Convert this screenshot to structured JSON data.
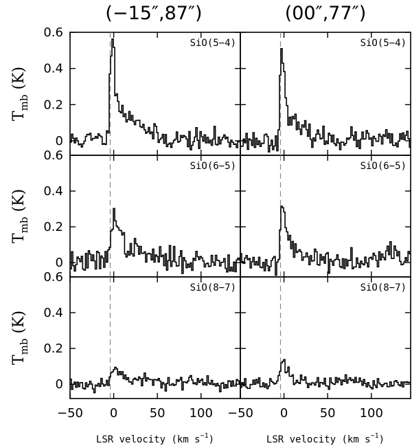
{
  "chart_data": {
    "type": "line",
    "style": "step",
    "columns": [
      {
        "title": "(−15″,87″)"
      },
      {
        "title": "(00″,77″)"
      }
    ],
    "rows": [
      {
        "line_label": "SiO(5−4)"
      },
      {
        "line_label": "SiO(6−5)"
      },
      {
        "line_label": "SiO(8−7)"
      }
    ],
    "xlabel": "LSR velocity (km s",
    "xlabel_sup": "−1",
    "xlabel_close": ")",
    "ylabel_main": "T",
    "ylabel_sub": "mb",
    "ylabel_unit": "(K)",
    "xlim": [
      -50,
      145
    ],
    "ylim": [
      -0.08,
      0.6
    ],
    "xticks": [
      -50,
      0,
      50,
      100
    ],
    "xtick_labels": [
      "−50",
      "0",
      "50",
      "100"
    ],
    "yticks": [
      0,
      0.2,
      0.4,
      0.6
    ],
    "ytick_labels": [
      "0",
      "0.2",
      "0.4",
      "0.6"
    ],
    "vsys_kms": -4,
    "channel_width_kms": 1.6,
    "panels": [
      {
        "name": "(−15″,87″) SiO(5−4)",
        "anchors": [
          [
            -50,
            0.0
          ],
          [
            -10,
            0.01
          ],
          [
            -6,
            0.03
          ],
          [
            -5,
            0.35
          ],
          [
            -3,
            0.5
          ],
          [
            0,
            0.53
          ],
          [
            2,
            0.32
          ],
          [
            6,
            0.22
          ],
          [
            12,
            0.15
          ],
          [
            18,
            0.12
          ],
          [
            25,
            0.13
          ],
          [
            32,
            0.1
          ],
          [
            40,
            0.05
          ],
          [
            50,
            0.02
          ],
          [
            60,
            0.01
          ],
          [
            145,
            0.0
          ]
        ],
        "noise": 0.028,
        "seed": 11
      },
      {
        "name": "(00″,77″) SiO(5−4)",
        "anchors": [
          [
            -50,
            0.0
          ],
          [
            -8,
            0.0
          ],
          [
            -6,
            0.02
          ],
          [
            -5,
            0.32
          ],
          [
            -3,
            0.55
          ],
          [
            -1,
            0.44
          ],
          [
            1,
            0.28
          ],
          [
            4,
            0.18
          ],
          [
            8,
            0.12
          ],
          [
            14,
            0.08
          ],
          [
            22,
            0.05
          ],
          [
            30,
            0.04
          ],
          [
            40,
            0.02
          ],
          [
            55,
            0.01
          ],
          [
            145,
            0.0
          ]
        ],
        "noise": 0.028,
        "seed": 23
      },
      {
        "name": "(−15″,87″) SiO(6−5)",
        "anchors": [
          [
            -50,
            0.0
          ],
          [
            -8,
            0.01
          ],
          [
            -6,
            0.05
          ],
          [
            -3,
            0.2
          ],
          [
            0,
            0.29
          ],
          [
            2,
            0.26
          ],
          [
            5,
            0.18
          ],
          [
            10,
            0.12
          ],
          [
            18,
            0.08
          ],
          [
            28,
            0.06
          ],
          [
            40,
            0.04
          ],
          [
            55,
            0.02
          ],
          [
            145,
            0.0
          ]
        ],
        "noise": 0.032,
        "seed": 37
      },
      {
        "name": "(00″,77″) SiO(6−5)",
        "anchors": [
          [
            -50,
            0.0
          ],
          [
            -8,
            0.0
          ],
          [
            -6,
            0.05
          ],
          [
            -4,
            0.22
          ],
          [
            -2,
            0.33
          ],
          [
            0,
            0.27
          ],
          [
            3,
            0.16
          ],
          [
            8,
            0.1
          ],
          [
            15,
            0.06
          ],
          [
            25,
            0.03
          ],
          [
            40,
            0.02
          ],
          [
            80,
            0.01
          ],
          [
            110,
            0.05
          ],
          [
            125,
            0.06
          ],
          [
            145,
            0.02
          ]
        ],
        "noise": 0.03,
        "seed": 41
      },
      {
        "name": "(−15″,87″) SiO(8−7)",
        "anchors": [
          [
            -50,
            0.0
          ],
          [
            -8,
            0.0
          ],
          [
            -5,
            0.05
          ],
          [
            -2,
            0.09
          ],
          [
            0,
            0.1
          ],
          [
            4,
            0.07
          ],
          [
            10,
            0.05
          ],
          [
            18,
            0.03
          ],
          [
            30,
            0.02
          ],
          [
            145,
            0.0
          ]
        ],
        "noise": 0.02,
        "seed": 53
      },
      {
        "name": "(00″,77″) SiO(8−7)",
        "anchors": [
          [
            -50,
            0.0
          ],
          [
            -8,
            0.0
          ],
          [
            -6,
            0.03
          ],
          [
            -4,
            0.1
          ],
          [
            -2,
            0.14
          ],
          [
            0,
            0.12
          ],
          [
            3,
            0.07
          ],
          [
            8,
            0.04
          ],
          [
            15,
            0.02
          ],
          [
            30,
            0.01
          ],
          [
            145,
            0.0
          ]
        ],
        "noise": 0.018,
        "seed": 67
      }
    ]
  }
}
